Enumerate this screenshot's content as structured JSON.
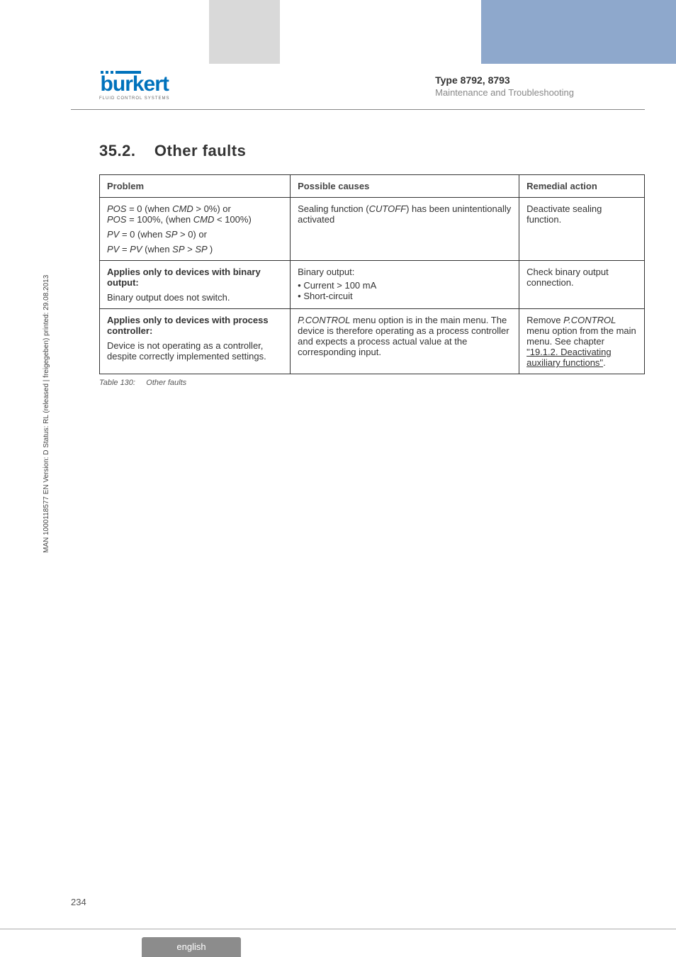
{
  "header": {
    "logo_text": "burkert",
    "logo_sub": "FLUID CONTROL SYSTEMS",
    "type_line": "Type 8792, 8793",
    "subtitle": "Maintenance and Troubleshooting"
  },
  "section": {
    "number": "35.2.",
    "title": "Other faults"
  },
  "table": {
    "headers": {
      "problem": "Problem",
      "cause": "Possible causes",
      "remedy": "Remedial action"
    },
    "rows": [
      {
        "problem_l1a": "POS",
        "problem_l1b": " = 0 (when ",
        "problem_l1c": "CMD",
        "problem_l1d": " > 0%) or",
        "problem_l2a": "POS",
        "problem_l2b": " = 100%, (when ",
        "problem_l2c": "CMD",
        "problem_l2d": " < 100%)",
        "problem_l3a": "PV ",
        "problem_l3b": " = 0 (when  ",
        "problem_l3c": "SP",
        "problem_l3d": " > 0) or",
        "problem_l4a": "PV",
        "problem_l4b": " = ",
        "problem_l4c": "PV ",
        "problem_l4d": " (when ",
        "problem_l4e": "SP",
        "problem_l4f": " > ",
        "problem_l4g": "SP ",
        "problem_l4h": ")",
        "cause_a": "Sealing function (",
        "cause_b": "CUTOFF",
        "cause_c": ") has been unintentionally activated",
        "remedy": "Deactivate sealing function."
      },
      {
        "problem_bold": "Applies only to devices with binary output:",
        "problem_rest": "Binary output does not switch.",
        "cause_head": "Binary output:",
        "cause_b1": "Current  >  100 mA",
        "cause_b2": "Short-circuit",
        "remedy": "Check binary output connection."
      },
      {
        "problem_bold": "Applies only to devices with process controller:",
        "problem_rest": "Device is not operating as a controller, despite correctly implemented settings.",
        "cause_a": "P.CONTROL",
        "cause_b": " menu option is in the main menu. The device is therefore operating as a process controller and expects a process actual value at the corresponding input.",
        "remedy_a": "Remove ",
        "remedy_b": "P.CONTROL",
        "remedy_c": " menu option from the main menu. See chapter ",
        "remedy_link": "\"19.1.2. Deactivating auxiliary functions\"",
        "remedy_d": "."
      }
    ],
    "caption_label": "Table 130:",
    "caption_text": "Other faults"
  },
  "side_text": "MAN  1000118577  EN  Version: D  Status: RL (released | freigegeben)  printed: 29.08.2013",
  "page_number": "234",
  "footer_lang": "english"
}
